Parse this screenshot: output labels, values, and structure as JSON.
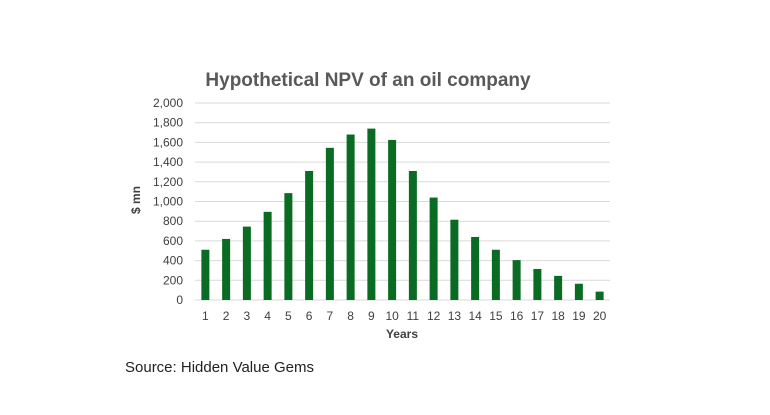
{
  "chart_data": {
    "type": "bar",
    "title": "Hypothetical NPV of an oil company",
    "xlabel": "Years",
    "ylabel": "$ mn",
    "categories": [
      "1",
      "2",
      "3",
      "4",
      "5",
      "6",
      "7",
      "8",
      "9",
      "10",
      "11",
      "12",
      "13",
      "14",
      "15",
      "16",
      "17",
      "18",
      "19",
      "20"
    ],
    "values": [
      510,
      620,
      745,
      895,
      1085,
      1310,
      1545,
      1680,
      1740,
      1625,
      1310,
      1040,
      815,
      640,
      510,
      405,
      315,
      245,
      165,
      85
    ],
    "ylim": [
      0,
      2000
    ],
    "yticks": [
      0,
      200,
      400,
      600,
      800,
      1000,
      1200,
      1400,
      1600,
      1800,
      2000
    ],
    "ytick_labels": [
      "0",
      "200",
      "400",
      "600",
      "800",
      "1,000",
      "1,200",
      "1,400",
      "1,600",
      "1,800",
      "2,000"
    ],
    "grid": true,
    "bar_color": "#0a6b22",
    "grid_color": "#d9d9d9"
  },
  "source_text": "Source: Hidden Value Gems"
}
